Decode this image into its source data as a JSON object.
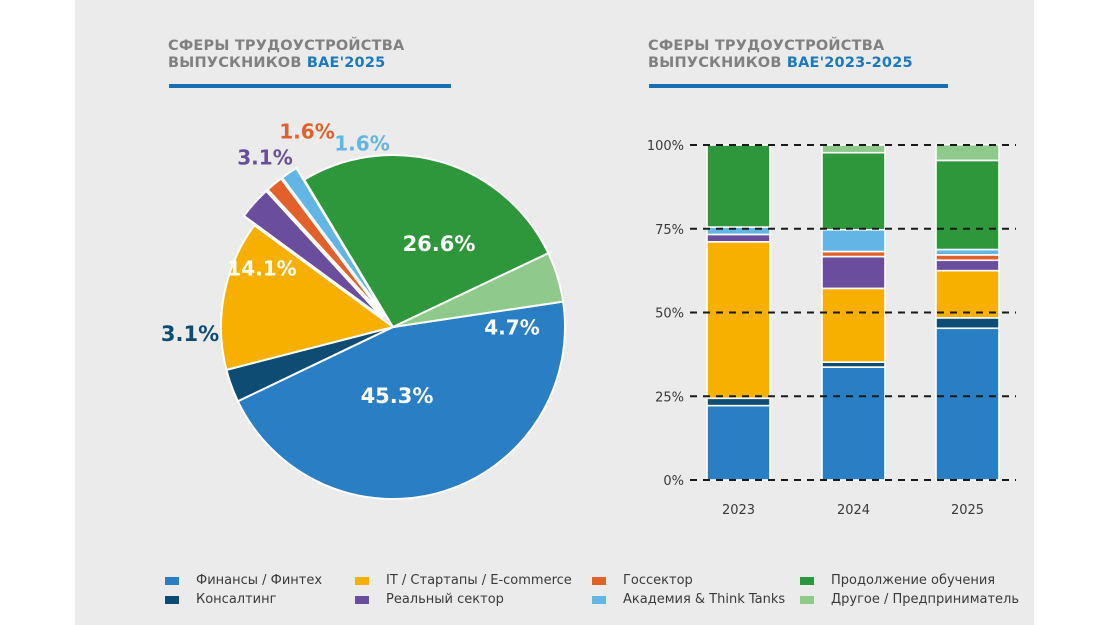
{
  "left_title": {
    "line1": "СФЕРЫ ТРУДОУСТРОЙСТВА",
    "line2_prefix": "ВЫПУСКНИКОВ ",
    "line2_accent": "ВАЕ'2025"
  },
  "right_title": {
    "line1": "СФЕРЫ ТРУДОУСТРОЙСТВА",
    "line2_prefix": "ВЫПУСКНИКОВ ",
    "line2_accent": "ВАЕ'2023-2025"
  },
  "colors": {
    "finance": "#2a7fc4",
    "consulting": "#0e4c74",
    "it": "#f7b000",
    "real": "#6a4d9d",
    "gov": "#e2612a",
    "academia": "#62b5e4",
    "study": "#2e963b",
    "other": "#8fc98c"
  },
  "legend": [
    {
      "key": "finance",
      "label": "Финансы / Финтех"
    },
    {
      "key": "consulting",
      "label": "Консалтинг"
    },
    {
      "key": "it",
      "label": "IT / Стартапы / E-commerce"
    },
    {
      "key": "real",
      "label": "Реальный сектор"
    },
    {
      "key": "gov",
      "label": "Госсектор"
    },
    {
      "key": "academia",
      "label": "Академия & Think Tanks"
    },
    {
      "key": "study",
      "label": "Продолжение обучения"
    },
    {
      "key": "other",
      "label": "Другое / Предприниматель"
    }
  ],
  "chart_data": [
    {
      "type": "pie",
      "title": "СФЕРЫ ТРУДОУСТРОЙСТВА ВЫПУСКНИКОВ ВАЕ'2025",
      "slices": [
        {
          "key": "finance",
          "label": "Финансы / Финтех",
          "value": 45.3,
          "data_label": "45.3%",
          "exploded": false
        },
        {
          "key": "consulting",
          "label": "Консалтинг",
          "value": 3.1,
          "data_label": "3.1%",
          "exploded": false
        },
        {
          "key": "it",
          "label": "IT / Стартапы / E-commerce",
          "value": 14.1,
          "data_label": "14.1%",
          "exploded": false
        },
        {
          "key": "real",
          "label": "Реальный сектор",
          "value": 3.1,
          "data_label": "3.1%",
          "exploded": true
        },
        {
          "key": "gov",
          "label": "Госсектор",
          "value": 1.6,
          "data_label": "1.6%",
          "exploded": true
        },
        {
          "key": "academia",
          "label": "Академия & Think Tanks",
          "value": 1.6,
          "data_label": "1.6%",
          "exploded": true
        },
        {
          "key": "study",
          "label": "Продолжение обучения",
          "value": 26.6,
          "data_label": "26.6%",
          "exploded": false
        },
        {
          "key": "other",
          "label": "Другое / Предприниматель",
          "value": 4.7,
          "data_label": "4.7%",
          "exploded": false
        }
      ]
    },
    {
      "type": "bar",
      "stacked": true,
      "title": "СФЕРЫ ТРУДОУСТРОЙСТВА ВЫПУСКНИКОВ ВАЕ'2023-2025",
      "categories": [
        "2023",
        "2024",
        "2025"
      ],
      "ylim": [
        0,
        100
      ],
      "yticks": [
        0,
        25,
        50,
        75,
        100
      ],
      "ytick_labels": [
        "0%",
        "25%",
        "50%",
        "75%",
        "100%"
      ],
      "grid": "dashed horizontal",
      "series": [
        {
          "key": "finance",
          "name": "Финансы / Финтех",
          "values": [
            22.2,
            33.7,
            45.3
          ]
        },
        {
          "key": "consulting",
          "name": "Консалтинг",
          "values": [
            2.2,
            1.5,
            3.1
          ]
        },
        {
          "key": "it",
          "name": "IT / Стартапы / E-commerce",
          "values": [
            46.7,
            22.0,
            14.1
          ]
        },
        {
          "key": "real",
          "name": "Реальный сектор",
          "values": [
            2.2,
            9.5,
            3.1
          ]
        },
        {
          "key": "gov",
          "name": "Госсектор",
          "values": [
            0,
            1.5,
            1.6
          ]
        },
        {
          "key": "academia",
          "name": "Академия & Think Tanks",
          "values": [
            2.2,
            6.5,
            1.6
          ]
        },
        {
          "key": "study",
          "name": "Продолжение обучения",
          "values": [
            24.5,
            23.0,
            26.6
          ]
        },
        {
          "key": "other",
          "name": "Другое / Предприниматель",
          "values": [
            0,
            2.3,
            4.7
          ]
        }
      ]
    }
  ]
}
